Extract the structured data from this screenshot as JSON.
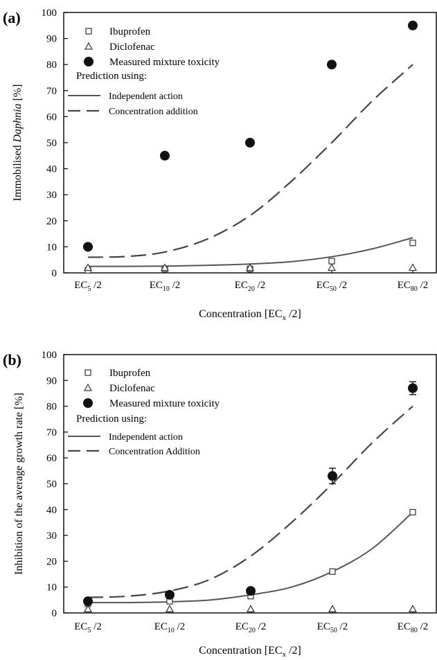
{
  "chart_data": [
    {
      "type": "scatter",
      "panel_label": "(a)",
      "ylabel_pre": "Immobilised ",
      "ylabel_italic": "Daphnia",
      "ylabel_post": " [%]",
      "xlabel_pre": "Concentration [EC",
      "xlabel_sub": "x",
      "xlabel_post": " /2]",
      "ylim": [
        0,
        100
      ],
      "yticks": [
        "0",
        "10",
        "20",
        "30",
        "40",
        "50",
        "60",
        "70",
        "80",
        "90",
        "100"
      ],
      "categories": [
        {
          "pre": "EC",
          "sub": "5",
          "post": " /2"
        },
        {
          "pre": "EC",
          "sub": "10",
          "post": " /2"
        },
        {
          "pre": "EC",
          "sub": "20",
          "post": " /2"
        },
        {
          "pre": "EC",
          "sub": "50",
          "post": " /2"
        },
        {
          "pre": "EC",
          "sub": "80",
          "post": " /2"
        }
      ],
      "legend": {
        "ibuprofen": "Ibuprofen",
        "diclofenac": "Diclofenac",
        "measured": "Measured mixture toxicity",
        "prediction_heading": "Prediction using:",
        "ia": "Independent action",
        "ca": "Concentration addition"
      },
      "series": [
        {
          "name": "Ibuprofen",
          "marker": "open-square",
          "values": [
            1.0,
            1.5,
            1.5,
            4.5,
            11.5
          ]
        },
        {
          "name": "Diclofenac",
          "marker": "open-triangle",
          "values": [
            2.0,
            2.0,
            2.0,
            2.0,
            2.0
          ]
        },
        {
          "name": "Measured mixture toxicity",
          "marker": "filled-circle",
          "values": [
            10,
            45,
            50,
            80,
            95
          ]
        },
        {
          "name": "Independent action",
          "style": "solid",
          "curve_x": [
            0,
            0.5,
            1,
            1.5,
            2,
            2.5,
            3,
            3.5,
            4
          ],
          "curve_y": [
            2.5,
            2.5,
            2.6,
            2.9,
            3.4,
            4.3,
            6.2,
            9.2,
            13.5
          ]
        },
        {
          "name": "Concentration addition",
          "style": "dashed",
          "curve_x": [
            0,
            0.5,
            1,
            1.5,
            2,
            2.5,
            3,
            3.5,
            4
          ],
          "curve_y": [
            6,
            6.3,
            8,
            13,
            22,
            35,
            50,
            66,
            80
          ]
        }
      ]
    },
    {
      "type": "scatter",
      "panel_label": "(b)",
      "ylabel_pre": "Inhibition of the average growth rate [%]",
      "ylabel_italic": "",
      "ylabel_post": "",
      "xlabel_pre": "Concentration [EC",
      "xlabel_sub": "x",
      "xlabel_post": " /2]",
      "ylim": [
        0,
        100
      ],
      "yticks": [
        "0",
        "10",
        "20",
        "30",
        "40",
        "50",
        "60",
        "70",
        "80",
        "90",
        "100"
      ],
      "categories": [
        {
          "pre": "EC",
          "sub": "5",
          "post": " /2"
        },
        {
          "pre": "EC",
          "sub": "10",
          "post": " /2"
        },
        {
          "pre": "EC",
          "sub": "20",
          "post": " /2"
        },
        {
          "pre": "EC",
          "sub": "50",
          "post": " /2"
        },
        {
          "pre": "EC",
          "sub": "80",
          "post": " /2"
        }
      ],
      "legend": {
        "ibuprofen": "Ibuprofen",
        "diclofenac": "Diclofenac",
        "measured": "Measured mixture toxicity",
        "prediction_heading": "Prediction using:",
        "ia": "Independent action",
        "ca": "Concentration Addition"
      },
      "series": [
        {
          "name": "Ibuprofen",
          "marker": "open-square",
          "values": [
            3.5,
            4.5,
            6.5,
            16,
            39
          ]
        },
        {
          "name": "Diclofenac",
          "marker": "open-triangle",
          "values": [
            1.5,
            1.5,
            1.5,
            1.5,
            1.5
          ]
        },
        {
          "name": "Measured mixture toxicity",
          "marker": "filled-circle",
          "values": [
            4.5,
            7,
            8.5,
            53,
            87
          ],
          "errors": [
            0.5,
            0.5,
            0.5,
            3,
            2.5
          ]
        },
        {
          "name": "Independent action",
          "style": "solid",
          "curve_x": [
            0,
            0.5,
            1,
            1.5,
            2,
            2.5,
            3,
            3.5,
            4
          ],
          "curve_y": [
            4,
            4,
            4.3,
            5,
            7,
            10,
            16,
            25,
            39
          ]
        },
        {
          "name": "Concentration Addition",
          "style": "dashed",
          "curve_x": [
            0,
            0.5,
            1,
            1.5,
            2,
            2.5,
            3,
            3.5,
            4
          ],
          "curve_y": [
            6,
            6.5,
            8.5,
            13,
            22,
            35,
            50,
            66,
            80
          ]
        }
      ]
    }
  ]
}
